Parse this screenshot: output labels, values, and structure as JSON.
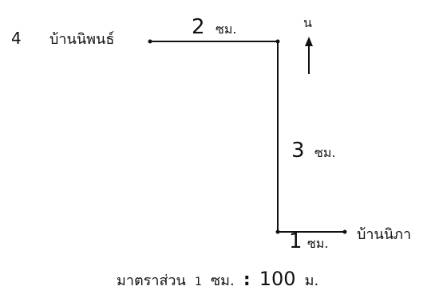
{
  "problem_number": "4",
  "places": {
    "start": "บ้านนิพนธ์",
    "end": "บ้านนิภา"
  },
  "north_label": "น",
  "segments": [
    {
      "value": "2",
      "unit": "ซม."
    },
    {
      "value": "3",
      "unit": "ซม."
    },
    {
      "value": "1",
      "unit": "ซม."
    }
  ],
  "scale": {
    "prefix": "มาตราส่วน",
    "map_value": "1",
    "map_unit": "ซม.",
    "separator": ":",
    "real_value": "100",
    "real_unit": "ม."
  },
  "colors": {
    "ink": "#111111",
    "background": "#ffffff"
  }
}
